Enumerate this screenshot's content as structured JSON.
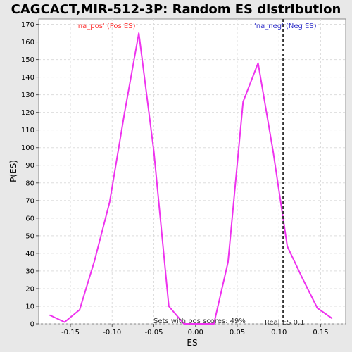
{
  "chart_data": {
    "type": "line",
    "title": "CAGCACT,MIR-512-3P: Random ES distribution",
    "xlabel": "ES",
    "ylabel": "P(ES)",
    "xlim": [
      -0.188,
      0.18
    ],
    "ylim": [
      0,
      173
    ],
    "x_ticks": [
      -0.15,
      -0.1,
      -0.05,
      0.0,
      0.05,
      0.1,
      0.15
    ],
    "x_tick_labels": [
      "-0.15",
      "-0.10",
      "-0.05",
      "0.00",
      "0.05",
      "0.10",
      "0.15"
    ],
    "y_ticks": [
      0,
      10,
      20,
      30,
      40,
      50,
      60,
      70,
      80,
      90,
      100,
      110,
      120,
      130,
      140,
      150,
      160,
      170
    ],
    "y_tick_labels": [
      "0",
      "10",
      "20",
      "30",
      "40",
      "50",
      "60",
      "70",
      "80",
      "90",
      "100",
      "110",
      "120",
      "130",
      "140",
      "150",
      "160",
      "170"
    ],
    "grid": true,
    "series": [
      {
        "color": "#ee33ee",
        "x": [
          -0.175,
          -0.157,
          -0.139,
          -0.121,
          -0.103,
          -0.085,
          -0.068,
          -0.05,
          -0.032,
          -0.014,
          0.004,
          0.022,
          0.039,
          0.057,
          0.075,
          0.093,
          0.11,
          0.128,
          0.146,
          0.164
        ],
        "y": [
          5,
          1,
          8,
          36,
          69,
          120,
          165,
          98,
          10,
          0,
          0,
          0,
          35,
          126,
          148,
          98,
          44,
          26,
          9,
          3
        ]
      }
    ],
    "annotations": {
      "pos_label": "'na_pos' (Pos ES)",
      "pos_color": "#ff3333",
      "neg_label": "'na_neg' (Neg ES)",
      "neg_color": "#3333cc",
      "sets_text": "Sets with pos scores: 49%",
      "real_es_text": "Real ES 0.1",
      "real_es_value": 0.105
    }
  }
}
